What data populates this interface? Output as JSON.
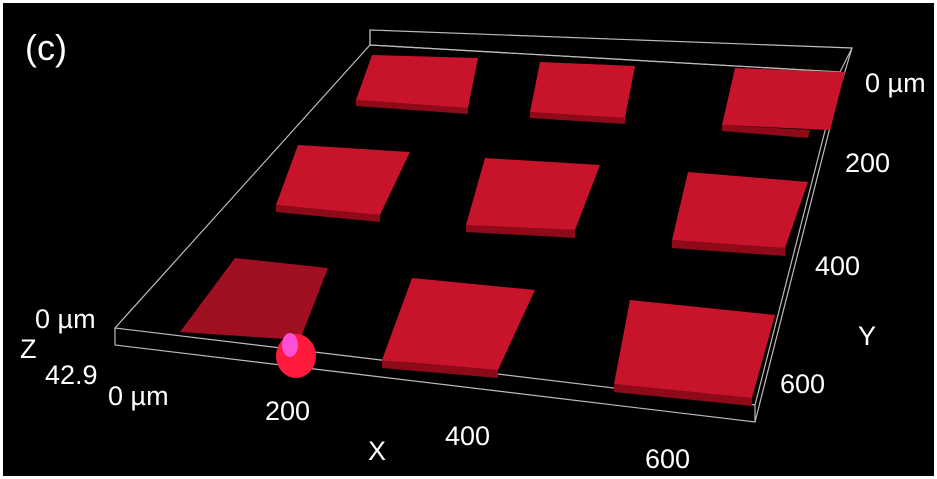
{
  "panel_label": "(c)",
  "x_axis": {
    "label": "X",
    "ticks": [
      "0 µm",
      "200",
      "400",
      "600"
    ]
  },
  "y_axis": {
    "label": "Y",
    "ticks": [
      "0 µm",
      "200",
      "400",
      "600"
    ]
  },
  "z_axis": {
    "label": "Z",
    "ticks": [
      "0 µm",
      "42.9"
    ]
  }
}
